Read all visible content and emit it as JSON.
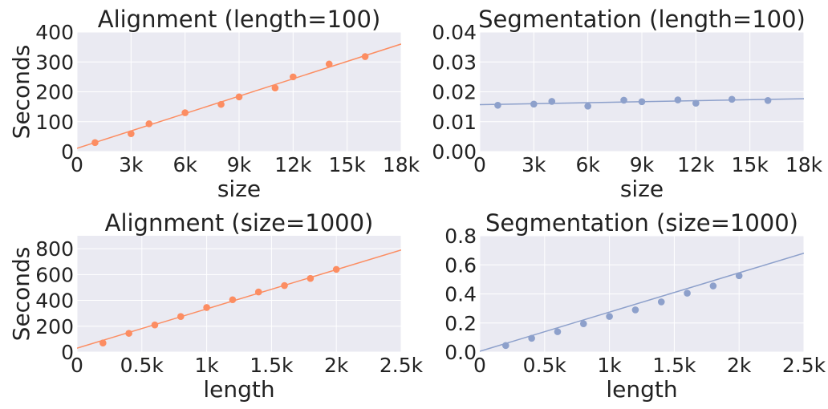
{
  "chart_data": [
    {
      "type": "scatter",
      "title": "Alignment (length=100)",
      "xlabel": "size",
      "ylabel": "Seconds",
      "xlim": [
        0,
        18000
      ],
      "ylim": [
        0,
        400
      ],
      "xticks": [
        0,
        3000,
        6000,
        9000,
        12000,
        15000,
        18000
      ],
      "xtick_labels": [
        "0",
        "3k",
        "6k",
        "9k",
        "12k",
        "15k",
        "18k"
      ],
      "yticks": [
        0,
        100,
        200,
        300,
        400
      ],
      "ytick_labels": [
        "0",
        "100",
        "200",
        "300",
        "400"
      ],
      "grid": true,
      "color": "#fc8d62",
      "points": [
        {
          "x": 1000,
          "y": 30
        },
        {
          "x": 3000,
          "y": 60
        },
        {
          "x": 4000,
          "y": 93
        },
        {
          "x": 6000,
          "y": 130
        },
        {
          "x": 8000,
          "y": 158
        },
        {
          "x": 9000,
          "y": 183
        },
        {
          "x": 11000,
          "y": 213
        },
        {
          "x": 12000,
          "y": 250
        },
        {
          "x": 14000,
          "y": 293
        },
        {
          "x": 16000,
          "y": 318
        }
      ],
      "fit_line": {
        "x": [
          0,
          18000
        ],
        "y": [
          11,
          360
        ]
      }
    },
    {
      "type": "scatter",
      "title": "Segmentation (length=100)",
      "xlabel": "size",
      "ylabel": "",
      "xlim": [
        0,
        18000
      ],
      "ylim": [
        0,
        0.04
      ],
      "xticks": [
        0,
        3000,
        6000,
        9000,
        12000,
        15000,
        18000
      ],
      "xtick_labels": [
        "0",
        "3k",
        "6k",
        "9k",
        "12k",
        "15k",
        "18k"
      ],
      "yticks": [
        0,
        0.01,
        0.02,
        0.03,
        0.04
      ],
      "ytick_labels": [
        "0.00",
        "0.01",
        "0.02",
        "0.03",
        "0.04"
      ],
      "grid": true,
      "color": "#8da0cb",
      "points": [
        {
          "x": 1000,
          "y": 0.0155
        },
        {
          "x": 3000,
          "y": 0.0159
        },
        {
          "x": 4000,
          "y": 0.0168
        },
        {
          "x": 6000,
          "y": 0.0152
        },
        {
          "x": 8000,
          "y": 0.0172
        },
        {
          "x": 9000,
          "y": 0.0167
        },
        {
          "x": 11000,
          "y": 0.0173
        },
        {
          "x": 12000,
          "y": 0.0162
        },
        {
          "x": 14000,
          "y": 0.0175
        },
        {
          "x": 16000,
          "y": 0.0171
        }
      ],
      "fit_line": {
        "x": [
          0,
          18000
        ],
        "y": [
          0.0157,
          0.0177
        ]
      }
    },
    {
      "type": "scatter",
      "title": "Alignment (size=1000)",
      "xlabel": "length",
      "ylabel": "Seconds",
      "xlim": [
        0,
        2500
      ],
      "ylim": [
        0,
        900
      ],
      "xticks": [
        0,
        500,
        1000,
        1500,
        2000,
        2500
      ],
      "xtick_labels": [
        "0",
        "0.5k",
        "1k",
        "1.5k",
        "2k",
        "2.5k"
      ],
      "yticks": [
        0,
        200,
        400,
        600,
        800
      ],
      "ytick_labels": [
        "0",
        "200",
        "400",
        "600",
        "800"
      ],
      "grid": true,
      "color": "#fc8d62",
      "points": [
        {
          "x": 200,
          "y": 70
        },
        {
          "x": 400,
          "y": 145
        },
        {
          "x": 600,
          "y": 210
        },
        {
          "x": 800,
          "y": 275
        },
        {
          "x": 1000,
          "y": 345
        },
        {
          "x": 1200,
          "y": 405
        },
        {
          "x": 1400,
          "y": 465
        },
        {
          "x": 1600,
          "y": 515
        },
        {
          "x": 1800,
          "y": 570
        },
        {
          "x": 2000,
          "y": 640
        }
      ],
      "fit_line": {
        "x": [
          0,
          2500
        ],
        "y": [
          30,
          790
        ]
      }
    },
    {
      "type": "scatter",
      "title": "Segmentation (size=1000)",
      "xlabel": "length",
      "ylabel": "",
      "xlim": [
        0,
        2500
      ],
      "ylim": [
        0,
        0.8
      ],
      "xticks": [
        0,
        500,
        1000,
        1500,
        2000,
        2500
      ],
      "xtick_labels": [
        "0",
        "0.5k",
        "1k",
        "1.5k",
        "2k",
        "2.5k"
      ],
      "yticks": [
        0,
        0.2,
        0.4,
        0.6,
        0.8
      ],
      "ytick_labels": [
        "0.0",
        "0.2",
        "0.4",
        "0.6",
        "0.8"
      ],
      "grid": true,
      "color": "#8da0cb",
      "points": [
        {
          "x": 200,
          "y": 0.045
        },
        {
          "x": 400,
          "y": 0.095
        },
        {
          "x": 600,
          "y": 0.14
        },
        {
          "x": 800,
          "y": 0.195
        },
        {
          "x": 1000,
          "y": 0.245
        },
        {
          "x": 1200,
          "y": 0.29
        },
        {
          "x": 1400,
          "y": 0.345
        },
        {
          "x": 1600,
          "y": 0.405
        },
        {
          "x": 1800,
          "y": 0.455
        },
        {
          "x": 2000,
          "y": 0.525
        }
      ],
      "fit_line": {
        "x": [
          0,
          2500
        ],
        "y": [
          0.005,
          0.68
        ]
      }
    }
  ]
}
